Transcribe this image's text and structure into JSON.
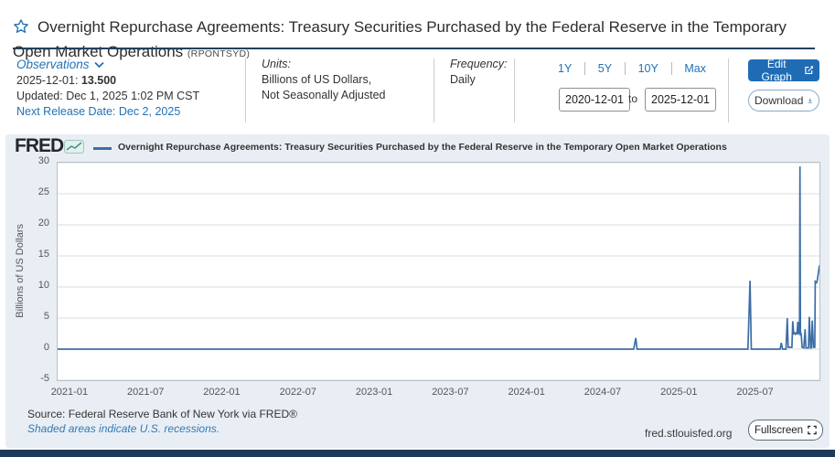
{
  "header": {
    "title": "Overnight Repurchase Agreements: Treasury Securities Purchased by the Federal Reserve in the Temporary Open Market Operations",
    "series_id": "(RPONTSYD)"
  },
  "meta": {
    "observations": {
      "label": "Observations",
      "latest_date": "2025-12-01:",
      "latest_value": "13.500",
      "updated": "Updated: Dec 1, 2025 1:02 PM CST",
      "next_release": "Next Release Date: Dec 2, 2025"
    },
    "units": {
      "label": "Units:",
      "line1": "Billions of US Dollars,",
      "line2": "Not Seasonally Adjusted"
    },
    "frequency": {
      "label": "Frequency:",
      "value": "Daily"
    },
    "ranges": [
      "1Y",
      "5Y",
      "10Y",
      "Max"
    ],
    "date_from": "2020-12-01",
    "to_label": "to",
    "date_to": "2025-12-01",
    "edit_graph_label": "Edit Graph",
    "download_label": "Download"
  },
  "chart": {
    "logo": "FRED",
    "legend": "Overnight Repurchase Agreements: Treasury Securities Purchased by the Federal Reserve in the Temporary Open Market Operations",
    "source_line": "Source: Federal Reserve Bank of New York via FRED®",
    "recession_note": "Shaded areas indicate U.S. recessions.",
    "site": "fred.stlouisfed.org",
    "fullscreen_label": "Fullscreen"
  },
  "icons": {
    "star": "star-outline",
    "chevron_down": "chevron-down",
    "edit": "pencil-square",
    "download": "arrow-down-tray",
    "fullscreen": "corner-brackets",
    "fred_sparkline": "mini-line-chart"
  },
  "colors": {
    "link_blue": "#2271b5",
    "button_blue": "#1f6cb5",
    "navy_bar": "#1d3a5c",
    "card_bg": "#e9eef4"
  },
  "chart_data": {
    "type": "line",
    "title": "Overnight Repurchase Agreements: Treasury Securities Purchased by the Federal Reserve in the Temporary Open Market Operations",
    "ylabel": "Billions of US Dollars",
    "x_start": "2020-12-01",
    "x_end": "2025-12-01",
    "ylim": [
      -5,
      30
    ],
    "y_ticks": [
      30,
      25,
      20,
      15,
      10,
      5,
      0,
      -5
    ],
    "x_ticks": [
      "2021-01",
      "2021-07",
      "2022-01",
      "2022-07",
      "2023-01",
      "2023-07",
      "2024-01",
      "2024-07",
      "2025-01",
      "2025-07"
    ],
    "x_tick_months": [
      1,
      7,
      13,
      19,
      25,
      31,
      37,
      43,
      49,
      55
    ],
    "line_color": "#3d6ea6",
    "grid": true,
    "legend_position": "top",
    "points": [
      [
        "2020-12-01",
        0
      ],
      [
        "2021-03-01",
        0
      ],
      [
        "2021-06-01",
        0
      ],
      [
        "2021-09-01",
        0
      ],
      [
        "2022-01-03",
        0
      ],
      [
        "2022-06-01",
        0
      ],
      [
        "2023-01-03",
        0
      ],
      [
        "2023-06-01",
        0
      ],
      [
        "2024-01-02",
        0
      ],
      [
        "2024-06-03",
        0
      ],
      [
        "2024-09-12",
        0
      ],
      [
        "2024-09-17",
        1.8
      ],
      [
        "2024-09-20",
        0
      ],
      [
        "2025-01-02",
        0
      ],
      [
        "2025-04-01",
        0
      ],
      [
        "2025-06-12",
        0
      ],
      [
        "2025-06-17",
        11
      ],
      [
        "2025-06-20",
        0
      ],
      [
        "2025-08-28",
        0
      ],
      [
        "2025-09-01",
        1
      ],
      [
        "2025-09-04",
        0
      ],
      [
        "2025-09-12",
        0
      ],
      [
        "2025-09-15",
        5
      ],
      [
        "2025-09-17",
        0.3
      ],
      [
        "2025-09-26",
        0.3
      ],
      [
        "2025-09-28",
        4.5
      ],
      [
        "2025-09-30",
        2.5
      ],
      [
        "2025-10-02",
        2.6
      ],
      [
        "2025-10-04",
        2.4
      ],
      [
        "2025-10-06",
        2.6
      ],
      [
        "2025-10-08",
        2.5
      ],
      [
        "2025-10-10",
        4.4
      ],
      [
        "2025-10-12",
        2.5
      ],
      [
        "2025-10-14",
        2.6
      ],
      [
        "2025-10-15",
        29.4
      ],
      [
        "2025-10-16",
        2.5
      ],
      [
        "2025-10-17",
        2.6
      ],
      [
        "2025-10-18",
        2.4
      ],
      [
        "2025-10-20",
        0.3
      ],
      [
        "2025-10-24",
        0.2
      ],
      [
        "2025-10-27",
        3.2
      ],
      [
        "2025-10-29",
        0.2
      ],
      [
        "2025-11-05",
        0.2
      ],
      [
        "2025-11-07",
        5.2
      ],
      [
        "2025-11-10",
        0.2
      ],
      [
        "2025-11-12",
        0.2
      ],
      [
        "2025-11-14",
        4.6
      ],
      [
        "2025-11-17",
        0.3
      ],
      [
        "2025-11-20",
        0.3
      ],
      [
        "2025-11-21",
        10.9
      ],
      [
        "2025-11-24",
        10.7
      ],
      [
        "2025-11-26",
        11.1
      ],
      [
        "2025-12-01",
        13.5
      ]
    ]
  }
}
